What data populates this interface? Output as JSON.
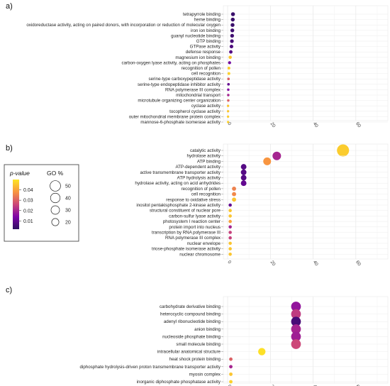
{
  "legend": {
    "pvalue_title": "p-value",
    "pvalue_ticks": [
      "0.04",
      "0.03",
      "0.02",
      "0.01"
    ],
    "pvalue_tick_values": [
      0.04,
      0.03,
      0.02,
      0.01
    ],
    "pvalue_range": [
      0.002,
      0.05
    ],
    "go_title": "GO %",
    "go_ticks": [
      "50",
      "40",
      "30",
      "20"
    ],
    "go_tick_values": [
      50,
      40,
      30,
      20
    ],
    "colors": [
      "#fde725",
      "#f89540",
      "#cc4778",
      "#7e03a8",
      "#2c115f"
    ]
  },
  "chart_data": [
    {
      "panel": "a)",
      "type": "scatter",
      "x_ticks": [
        "0",
        "20",
        "40",
        "60"
      ],
      "xlim": [
        -2,
        75
      ],
      "points": [
        {
          "term": "tetrapyrrole binding",
          "x": 2.5,
          "p": 0.004
        },
        {
          "term": "heme binding",
          "x": 2.4,
          "p": 0.004
        },
        {
          "term": "oxidoreductase activity, acting on paired donors, with incorporation or reduction of molecular oxygen",
          "x": 2.3,
          "p": 0.004
        },
        {
          "term": "iron ion binding",
          "x": 2.2,
          "p": 0.005
        },
        {
          "term": "guanyl nucleotide binding",
          "x": 2.1,
          "p": 0.005
        },
        {
          "term": "GTP binding",
          "x": 2.0,
          "p": 0.006
        },
        {
          "term": "GTPase activity",
          "x": 1.8,
          "p": 0.007
        },
        {
          "term": "defense response",
          "x": 1.5,
          "p": 0.008
        },
        {
          "term": "magnesium ion binding",
          "x": 1.2,
          "p": 0.045
        },
        {
          "term": "carbon-oxygen lyase activity, acting on phosphates",
          "x": 0.9,
          "p": 0.012
        },
        {
          "term": "recognition of pollen",
          "x": 0.6,
          "p": 0.046
        },
        {
          "term": "cell recognition",
          "x": 0.6,
          "p": 0.047
        },
        {
          "term": "serine-type carboxypeptidase activity",
          "x": 0.4,
          "p": 0.03
        },
        {
          "term": "serine-type endopeptidase inhibitor activity",
          "x": 0.4,
          "p": 0.01
        },
        {
          "term": "RNA polymerase III complex",
          "x": 0.3,
          "p": 0.015
        },
        {
          "term": "mitochondrial transport",
          "x": 0.3,
          "p": 0.02
        },
        {
          "term": "microtubule organizing center organization",
          "x": 0.3,
          "p": 0.03
        },
        {
          "term": "cyclase activity",
          "x": 0.2,
          "p": 0.045
        },
        {
          "term": "tocopherol cyclase activity",
          "x": 0.2,
          "p": 0.045
        },
        {
          "term": "outer mitochondrial membrane protein complex",
          "x": 0.2,
          "p": 0.046
        },
        {
          "term": "mannose-6-phosphate isomerase activity",
          "x": 0.2,
          "p": 0.047
        }
      ]
    },
    {
      "panel": "b)",
      "type": "scatter",
      "x_ticks": [
        "0",
        "20",
        "40",
        "60"
      ],
      "xlim": [
        -2,
        75
      ],
      "points": [
        {
          "term": "catalytic activity",
          "x": 54,
          "p": 0.046
        },
        {
          "term": "hydrolase activity",
          "x": 23,
          "p": 0.02
        },
        {
          "term": "ATP binding",
          "x": 18.5,
          "p": 0.038
        },
        {
          "term": "ATP-dependent activity",
          "x": 7.5,
          "p": 0.008
        },
        {
          "term": "active transmembrane transporter activity",
          "x": 7.5,
          "p": 0.008
        },
        {
          "term": "ATP hydrolysis activity",
          "x": 7.5,
          "p": 0.008
        },
        {
          "term": "hydrolase activity, acting on acid anhydrides",
          "x": 7.5,
          "p": 0.01
        },
        {
          "term": "recognition of pollen",
          "x": 3,
          "p": 0.035
        },
        {
          "term": "cell recognition",
          "x": 3,
          "p": 0.036
        },
        {
          "term": "response to oxidative stress",
          "x": 3,
          "p": 0.045
        },
        {
          "term": "inositol pentakisphosphate 2-kinase activity",
          "x": 1.2,
          "p": 0.01
        },
        {
          "term": "structural constituent of nuclear pore",
          "x": 1.2,
          "p": 0.045
        },
        {
          "term": "carbon-sulfur lyase activity",
          "x": 1.2,
          "p": 0.045
        },
        {
          "term": "photosystem I reaction center",
          "x": 1.2,
          "p": 0.04
        },
        {
          "term": "protein import into nucleus",
          "x": 1.2,
          "p": 0.02
        },
        {
          "term": "transcription by RNA polymerase III",
          "x": 1.2,
          "p": 0.025
        },
        {
          "term": "RNA polymerase III complex",
          "x": 1.2,
          "p": 0.025
        },
        {
          "term": "nuclear envelope",
          "x": 1.2,
          "p": 0.045
        },
        {
          "term": "triose-phosphate isomerase activity",
          "x": 1.2,
          "p": 0.045
        },
        {
          "term": "nuclear chromosome",
          "x": 1.2,
          "p": 0.045
        }
      ]
    },
    {
      "panel": "c)",
      "type": "scatter",
      "x_ticks": [
        "0",
        "20",
        "40",
        "60"
      ],
      "xlim": [
        -2,
        75
      ],
      "points": [
        {
          "term": "carbohydrate derivative binding",
          "x": 32,
          "p": 0.017
        },
        {
          "term": "heterocyclic compound binding",
          "x": 32,
          "p": 0.024
        },
        {
          "term": "adenyl ribonucleotide binding",
          "x": 32,
          "p": 0.006
        },
        {
          "term": "anion binding",
          "x": 32,
          "p": 0.02
        },
        {
          "term": "nucleoside phosphate binding",
          "x": 32,
          "p": 0.019
        },
        {
          "term": "small molecule binding",
          "x": 32,
          "p": 0.026
        },
        {
          "term": "intracellular anatomical structure",
          "x": 16,
          "p": 0.049
        },
        {
          "term": "heat shock protein binding",
          "x": 1.5,
          "p": 0.03
        },
        {
          "term": "diphosphate hydrolysis-driven proton transmembrane transporter activity",
          "x": 1.5,
          "p": 0.02
        },
        {
          "term": "myosin complex",
          "x": 1.5,
          "p": 0.045
        },
        {
          "term": "inorganic diphosphate phosphatase activity",
          "x": 1.5,
          "p": 0.047
        }
      ]
    }
  ]
}
